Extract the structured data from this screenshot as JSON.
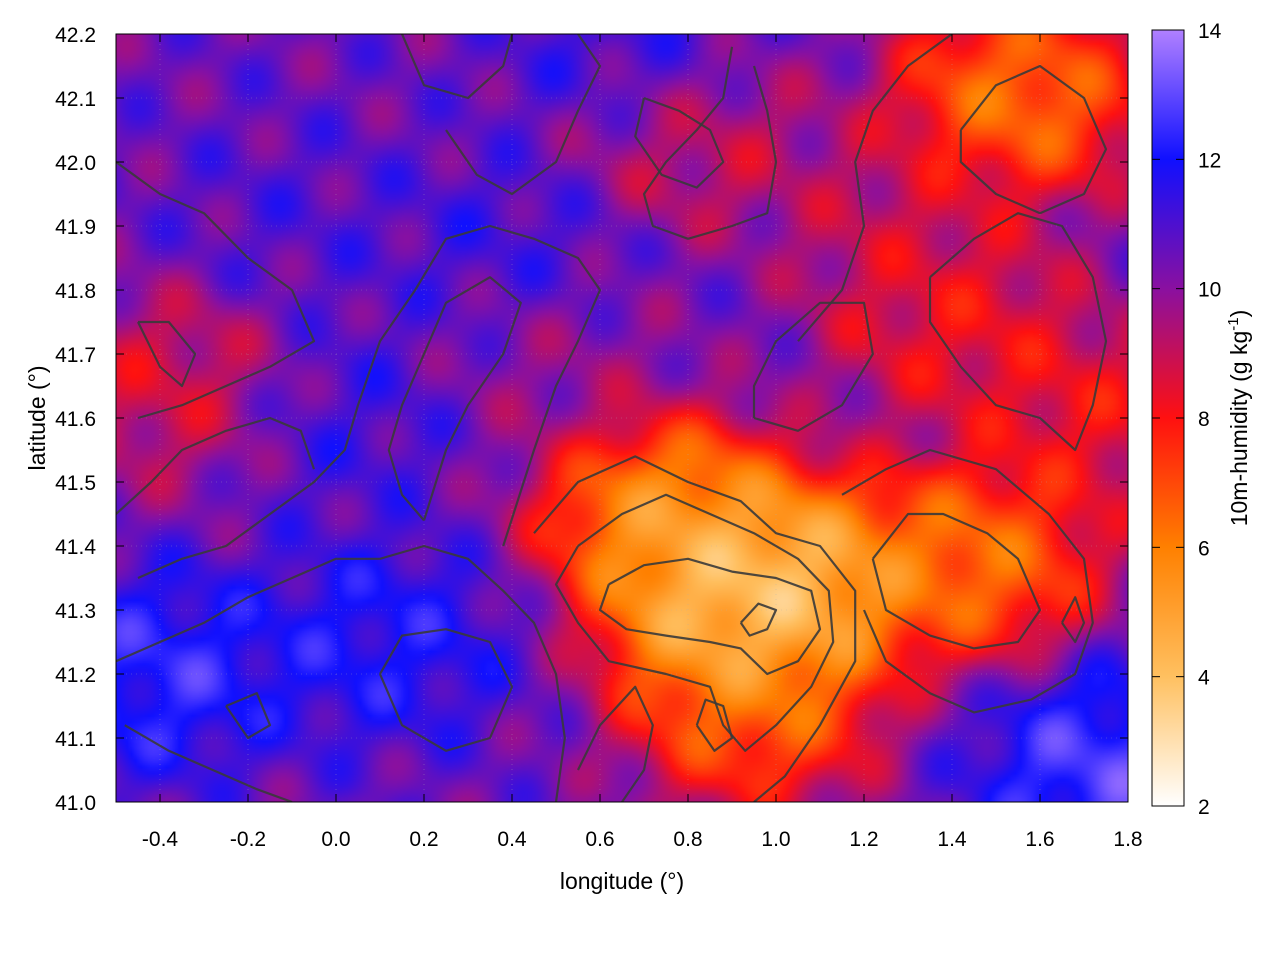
{
  "chart_data": {
    "type": "heatmap",
    "title": "",
    "xlabel": "longitude (°)",
    "ylabel": "latitude (°)",
    "colorbar_label": "10m-humidity (g kg-1)",
    "colorbar_label_parts": {
      "base": "10m-humidity (g kg",
      "sup": "-1",
      "end": ")"
    },
    "xlim": [
      -0.5,
      1.8
    ],
    "ylim": [
      41.0,
      42.2
    ],
    "color_range": [
      2,
      14
    ],
    "x_ticks": [
      "-0.4",
      "-0.2",
      "0.0",
      "0.2",
      "0.4",
      "0.6",
      "0.8",
      "1.0",
      "1.2",
      "1.4",
      "1.6",
      "1.8"
    ],
    "x_tick_values": [
      -0.4,
      -0.2,
      0.0,
      0.2,
      0.4,
      0.6,
      0.8,
      1.0,
      1.2,
      1.4,
      1.6,
      1.8
    ],
    "y_ticks": [
      "41.0",
      "41.1",
      "41.2",
      "41.3",
      "41.4",
      "41.5",
      "41.6",
      "41.7",
      "41.8",
      "41.9",
      "42.0",
      "42.1",
      "42.2"
    ],
    "y_tick_values": [
      41.0,
      41.1,
      41.2,
      41.3,
      41.4,
      41.5,
      41.6,
      41.7,
      41.8,
      41.9,
      42.0,
      42.1,
      42.2
    ],
    "colorbar_ticks": [
      "2",
      "4",
      "6",
      "8",
      "10",
      "12",
      "14"
    ],
    "colorbar_tick_values": [
      2,
      4,
      6,
      8,
      10,
      12,
      14
    ],
    "colormap": [
      {
        "value": 2,
        "color": "#ffffff"
      },
      {
        "value": 4,
        "color": "#ffc060"
      },
      {
        "value": 6,
        "color": "#ff8000"
      },
      {
        "value": 8,
        "color": "#ff1010"
      },
      {
        "value": 10,
        "color": "#8a10a0"
      },
      {
        "value": 12,
        "color": "#1010ff"
      },
      {
        "value": 14,
        "color": "#b080ff"
      }
    ],
    "contour_color": "#3a3a3a",
    "grid": true,
    "legend": "none",
    "humidity_features": [
      {
        "lon": 0.9,
        "lat": 41.3,
        "value": 2.5
      },
      {
        "lon": 0.75,
        "lat": 41.45,
        "value": 4.0
      },
      {
        "lon": 1.05,
        "lat": 41.35,
        "value": 3.0
      },
      {
        "lon": 1.45,
        "lat": 41.38,
        "value": 5.0
      },
      {
        "lon": 1.55,
        "lat": 42.1,
        "value": 5.0
      },
      {
        "lon": 0.95,
        "lat": 41.15,
        "value": 5.5
      },
      {
        "lon": 0.1,
        "lat": 41.25,
        "value": 12.5
      },
      {
        "lon": -0.4,
        "lat": 41.2,
        "value": 13.0
      },
      {
        "lon": 0.4,
        "lat": 41.85,
        "value": 11.5
      },
      {
        "lon": -0.1,
        "lat": 41.9,
        "value": 11.0
      },
      {
        "lon": 0.7,
        "lat": 42.15,
        "value": 12.0
      },
      {
        "lon": 0.0,
        "lat": 41.6,
        "value": 11.5
      },
      {
        "lon": -0.35,
        "lat": 41.65,
        "value": 8.0
      },
      {
        "lon": 0.8,
        "lat": 42.05,
        "value": 8.0
      },
      {
        "lon": 1.4,
        "lat": 41.75,
        "value": 7.5
      },
      {
        "lon": 1.3,
        "lat": 41.9,
        "value": 8.5
      },
      {
        "lon": 1.75,
        "lat": 41.05,
        "value": 13.5
      },
      {
        "lon": 0.5,
        "lat": 41.7,
        "value": 9.5
      },
      {
        "lon": 1.7,
        "lat": 41.6,
        "value": 7.5
      }
    ],
    "background_value": 10.5,
    "contour_lines": [
      [
        [
          0.62,
          41.34
        ],
        [
          0.7,
          41.37
        ],
        [
          0.8,
          41.38
        ],
        [
          0.9,
          41.36
        ],
        [
          1.0,
          41.35
        ],
        [
          1.08,
          41.33
        ],
        [
          1.1,
          41.27
        ],
        [
          1.05,
          41.22
        ],
        [
          0.98,
          41.2
        ],
        [
          0.92,
          41.24
        ],
        [
          0.85,
          41.25
        ],
        [
          0.75,
          41.26
        ],
        [
          0.66,
          41.27
        ],
        [
          0.6,
          41.3
        ],
        [
          0.62,
          41.34
        ]
      ],
      [
        [
          0.55,
          41.4
        ],
        [
          0.65,
          41.45
        ],
        [
          0.75,
          41.48
        ],
        [
          0.85,
          41.45
        ],
        [
          0.95,
          41.42
        ],
        [
          1.05,
          41.38
        ],
        [
          1.12,
          41.33
        ],
        [
          1.13,
          41.25
        ],
        [
          1.08,
          41.18
        ],
        [
          1.0,
          41.12
        ],
        [
          0.93,
          41.08
        ],
        [
          0.88,
          41.12
        ],
        [
          0.85,
          41.18
        ],
        [
          0.75,
          41.2
        ],
        [
          0.62,
          41.22
        ],
        [
          0.55,
          41.28
        ],
        [
          0.5,
          41.34
        ],
        [
          0.55,
          41.4
        ]
      ],
      [
        [
          0.45,
          41.42
        ],
        [
          0.55,
          41.5
        ],
        [
          0.68,
          41.54
        ],
        [
          0.8,
          41.5
        ],
        [
          0.92,
          41.47
        ],
        [
          1.0,
          41.42
        ],
        [
          1.1,
          41.4
        ],
        [
          1.18,
          41.33
        ],
        [
          1.18,
          41.22
        ],
        [
          1.1,
          41.12
        ],
        [
          1.02,
          41.04
        ],
        [
          0.95,
          41.0
        ]
      ],
      [
        [
          1.22,
          41.38
        ],
        [
          1.3,
          41.45
        ],
        [
          1.38,
          41.45
        ],
        [
          1.48,
          41.42
        ],
        [
          1.55,
          41.38
        ],
        [
          1.6,
          41.3
        ],
        [
          1.55,
          41.25
        ],
        [
          1.45,
          41.24
        ],
        [
          1.35,
          41.26
        ],
        [
          1.25,
          41.3
        ],
        [
          1.22,
          41.38
        ]
      ],
      [
        [
          1.15,
          41.48
        ],
        [
          1.25,
          41.52
        ],
        [
          1.35,
          41.55
        ],
        [
          1.5,
          41.52
        ],
        [
          1.62,
          41.45
        ],
        [
          1.7,
          41.38
        ],
        [
          1.72,
          41.28
        ],
        [
          1.68,
          41.2
        ],
        [
          1.58,
          41.16
        ],
        [
          1.45,
          41.14
        ],
        [
          1.35,
          41.17
        ],
        [
          1.25,
          41.22
        ],
        [
          1.2,
          41.3
        ]
      ],
      [
        [
          0.38,
          41.4
        ],
        [
          0.45,
          41.55
        ],
        [
          0.5,
          41.65
        ],
        [
          0.55,
          41.72
        ],
        [
          0.6,
          41.8
        ],
        [
          0.55,
          41.85
        ],
        [
          0.45,
          41.88
        ],
        [
          0.35,
          41.9
        ],
        [
          0.25,
          41.88
        ],
        [
          0.18,
          41.8
        ],
        [
          0.1,
          41.72
        ],
        [
          0.05,
          41.62
        ],
        [
          0.02,
          41.55
        ],
        [
          -0.05,
          41.5
        ],
        [
          -0.15,
          41.45
        ],
        [
          -0.25,
          41.4
        ],
        [
          -0.35,
          41.38
        ],
        [
          -0.45,
          41.35
        ]
      ],
      [
        [
          0.2,
          41.44
        ],
        [
          0.25,
          41.55
        ],
        [
          0.3,
          41.62
        ],
        [
          0.38,
          41.7
        ],
        [
          0.42,
          41.78
        ],
        [
          0.35,
          41.82
        ],
        [
          0.25,
          41.78
        ],
        [
          0.2,
          41.7
        ],
        [
          0.15,
          41.62
        ],
        [
          0.12,
          41.55
        ],
        [
          0.15,
          41.48
        ],
        [
          0.2,
          41.44
        ]
      ],
      [
        [
          0.25,
          42.05
        ],
        [
          0.32,
          41.98
        ],
        [
          0.4,
          41.95
        ],
        [
          0.5,
          42.0
        ],
        [
          0.55,
          42.08
        ],
        [
          0.6,
          42.15
        ],
        [
          0.55,
          42.2
        ]
      ],
      [
        [
          -0.5,
          42.0
        ],
        [
          -0.4,
          41.95
        ],
        [
          -0.3,
          41.92
        ],
        [
          -0.2,
          41.85
        ],
        [
          -0.1,
          41.8
        ],
        [
          -0.05,
          41.72
        ],
        [
          -0.15,
          41.68
        ],
        [
          -0.25,
          41.65
        ],
        [
          -0.35,
          41.62
        ],
        [
          -0.45,
          41.6
        ]
      ],
      [
        [
          -0.45,
          41.75
        ],
        [
          -0.4,
          41.68
        ],
        [
          -0.35,
          41.65
        ],
        [
          -0.32,
          41.7
        ],
        [
          -0.38,
          41.75
        ],
        [
          -0.45,
          41.75
        ]
      ],
      [
        [
          -0.48,
          41.12
        ],
        [
          -0.38,
          41.08
        ],
        [
          -0.28,
          41.05
        ],
        [
          -0.18,
          41.02
        ],
        [
          -0.1,
          41.0
        ]
      ],
      [
        [
          -0.5,
          41.22
        ],
        [
          -0.4,
          41.25
        ],
        [
          -0.3,
          41.28
        ],
        [
          -0.2,
          41.32
        ],
        [
          -0.1,
          41.35
        ],
        [
          0.0,
          41.38
        ],
        [
          0.1,
          41.38
        ],
        [
          0.2,
          41.4
        ],
        [
          0.3,
          41.38
        ],
        [
          0.38,
          41.33
        ],
        [
          0.45,
          41.28
        ],
        [
          0.5,
          41.2
        ],
        [
          0.52,
          41.1
        ],
        [
          0.5,
          41.0
        ]
      ],
      [
        [
          0.1,
          41.2
        ],
        [
          0.15,
          41.12
        ],
        [
          0.25,
          41.08
        ],
        [
          0.35,
          41.1
        ],
        [
          0.4,
          41.18
        ],
        [
          0.35,
          41.25
        ],
        [
          0.25,
          41.27
        ],
        [
          0.15,
          41.26
        ],
        [
          0.1,
          41.2
        ]
      ],
      [
        [
          1.05,
          41.72
        ],
        [
          1.15,
          41.8
        ],
        [
          1.2,
          41.9
        ],
        [
          1.18,
          42.0
        ],
        [
          1.22,
          42.08
        ],
        [
          1.3,
          42.15
        ],
        [
          1.4,
          42.2
        ]
      ],
      [
        [
          1.35,
          41.82
        ],
        [
          1.45,
          41.88
        ],
        [
          1.55,
          41.92
        ],
        [
          1.65,
          41.9
        ],
        [
          1.72,
          41.82
        ],
        [
          1.75,
          41.72
        ],
        [
          1.72,
          41.62
        ],
        [
          1.68,
          41.55
        ],
        [
          1.6,
          41.6
        ],
        [
          1.5,
          41.62
        ],
        [
          1.42,
          41.68
        ],
        [
          1.35,
          41.75
        ],
        [
          1.35,
          41.82
        ]
      ],
      [
        [
          1.42,
          42.05
        ],
        [
          1.5,
          42.12
        ],
        [
          1.6,
          42.15
        ],
        [
          1.7,
          42.1
        ],
        [
          1.75,
          42.02
        ],
        [
          1.7,
          41.95
        ],
        [
          1.6,
          41.92
        ],
        [
          1.5,
          41.95
        ],
        [
          1.42,
          42.0
        ],
        [
          1.42,
          42.05
        ]
      ],
      [
        [
          0.9,
          42.18
        ],
        [
          0.88,
          42.1
        ],
        [
          0.82,
          42.05
        ],
        [
          0.75,
          42.0
        ],
        [
          0.7,
          41.95
        ],
        [
          0.72,
          41.9
        ],
        [
          0.8,
          41.88
        ],
        [
          0.9,
          41.9
        ],
        [
          0.98,
          41.92
        ],
        [
          1.0,
          42.0
        ],
        [
          0.98,
          42.08
        ],
        [
          0.95,
          42.15
        ]
      ],
      [
        [
          0.7,
          42.1
        ],
        [
          0.78,
          42.08
        ],
        [
          0.85,
          42.05
        ],
        [
          0.88,
          42.0
        ],
        [
          0.82,
          41.96
        ],
        [
          0.74,
          41.98
        ],
        [
          0.68,
          42.04
        ],
        [
          0.7,
          42.1
        ]
      ],
      [
        [
          0.95,
          41.6
        ],
        [
          1.05,
          41.58
        ],
        [
          1.15,
          41.62
        ],
        [
          1.22,
          41.7
        ],
        [
          1.2,
          41.78
        ],
        [
          1.1,
          41.78
        ],
        [
          1.0,
          41.72
        ],
        [
          0.95,
          41.65
        ],
        [
          0.95,
          41.6
        ]
      ],
      [
        [
          0.55,
          41.05
        ],
        [
          0.6,
          41.12
        ],
        [
          0.68,
          41.18
        ],
        [
          0.72,
          41.12
        ],
        [
          0.7,
          41.05
        ],
        [
          0.65,
          41.0
        ]
      ],
      [
        [
          0.82,
          41.12
        ],
        [
          0.86,
          41.08
        ],
        [
          0.9,
          41.1
        ],
        [
          0.88,
          41.15
        ],
        [
          0.84,
          41.16
        ],
        [
          0.82,
          41.12
        ]
      ],
      [
        [
          0.92,
          41.28
        ],
        [
          0.96,
          41.31
        ],
        [
          1.0,
          41.3
        ],
        [
          0.98,
          41.27
        ],
        [
          0.94,
          41.26
        ],
        [
          0.92,
          41.28
        ]
      ],
      [
        [
          -0.25,
          41.15
        ],
        [
          -0.2,
          41.1
        ],
        [
          -0.15,
          41.12
        ],
        [
          -0.18,
          41.17
        ],
        [
          -0.25,
          41.15
        ]
      ],
      [
        [
          1.65,
          41.28
        ],
        [
          1.68,
          41.25
        ],
        [
          1.7,
          41.28
        ],
        [
          1.68,
          41.32
        ],
        [
          1.65,
          41.28
        ]
      ],
      [
        [
          0.15,
          42.2
        ],
        [
          0.2,
          42.12
        ],
        [
          0.3,
          42.1
        ],
        [
          0.38,
          42.15
        ],
        [
          0.4,
          42.2
        ]
      ],
      [
        [
          -0.5,
          41.45
        ],
        [
          -0.42,
          41.5
        ],
        [
          -0.35,
          41.55
        ],
        [
          -0.25,
          41.58
        ],
        [
          -0.15,
          41.6
        ],
        [
          -0.08,
          41.58
        ],
        [
          -0.05,
          41.52
        ]
      ]
    ]
  }
}
